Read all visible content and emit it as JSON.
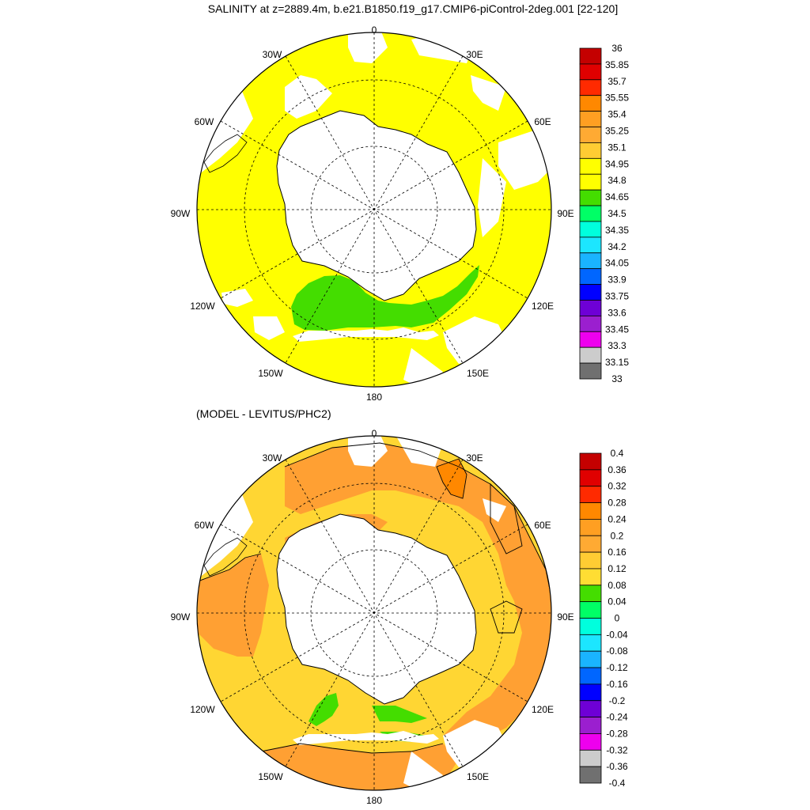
{
  "title": "SALINITY at z=2889.4m, b.e21.B1850.f19_g17.CMIP6-piControl-2deg.001 [22-120]",
  "subtitle": "(MODEL - LEVITUS/PHC2)",
  "lon_labels": [
    "0",
    "30E",
    "60E",
    "90E",
    "120E",
    "150E",
    "180",
    "150W",
    "120W",
    "90W",
    "60W",
    "30W"
  ],
  "colorbars": [
    {
      "id": "salinity",
      "levels": [
        "36",
        "35.85",
        "35.7",
        "35.55",
        "35.4",
        "35.25",
        "35.1",
        "34.95",
        "34.8",
        "34.65",
        "34.5",
        "34.35",
        "34.2",
        "34.05",
        "33.9",
        "33.75",
        "33.6",
        "33.45",
        "33.3",
        "33.15",
        "33"
      ],
      "colors": [
        "#c40000",
        "#e00000",
        "#ff2a00",
        "#ff8800",
        "#ff9f22",
        "#ffaa33",
        "#ffcc33",
        "#ffff00",
        "#ffff00",
        "#44dd00",
        "#00ff66",
        "#00ffdd",
        "#1ce6ff",
        "#1ab4ff",
        "#0066ff",
        "#0000ff",
        "#6e00d6",
        "#9b1fcf",
        "#ee00ee",
        "#cccccc",
        "#707070"
      ]
    },
    {
      "id": "difference",
      "levels": [
        "0.4",
        "0.36",
        "0.32",
        "0.28",
        "0.24",
        "0.2",
        "0.16",
        "0.12",
        "0.08",
        "0.04",
        "0",
        "-0.04",
        "-0.08",
        "-0.12",
        "-0.16",
        "-0.2",
        "-0.24",
        "-0.28",
        "-0.32",
        "-0.36",
        "-0.4"
      ],
      "colors": [
        "#c40000",
        "#e00000",
        "#ff2a00",
        "#ff8800",
        "#ff9f22",
        "#ffaa33",
        "#ffcc33",
        "#ffdd33",
        "#44dd00",
        "#00ff66",
        "#00ffdd",
        "#1ce6ff",
        "#1ab4ff",
        "#0066ff",
        "#0000ff",
        "#6e00d6",
        "#9b1fcf",
        "#ee00ee",
        "#cccccc",
        "#707070"
      ]
    }
  ],
  "field_colors": {
    "yellow": "#ffff00",
    "green": "#44dd00",
    "orange": "#ffa033",
    "gold": "#ffd633",
    "land": "#ffffff"
  }
}
